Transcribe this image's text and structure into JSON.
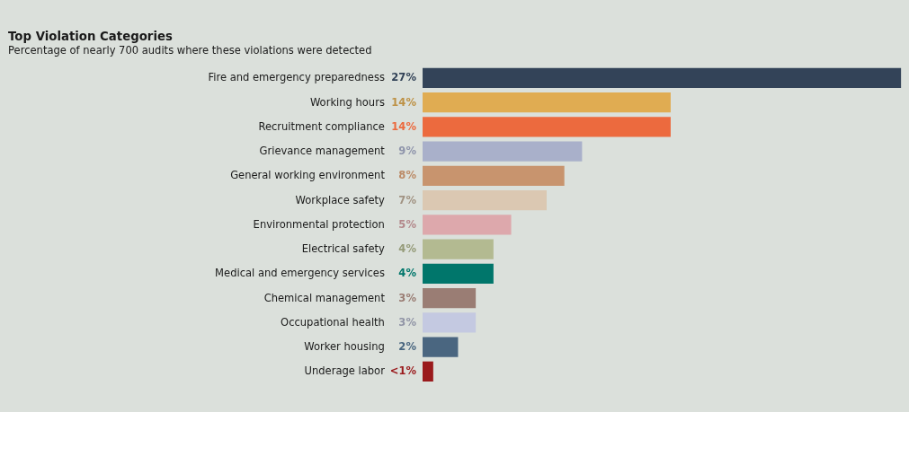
{
  "chart_data": {
    "type": "bar",
    "orientation": "horizontal",
    "title": "Top Violation Categories",
    "subtitle": "Percentage of nearly 700 audits where these violations were detected",
    "categories": [
      "Fire and emergency preparedness",
      "Working hours",
      "Recruitment compliance",
      "Grievance management",
      "General working environment",
      "Workplace safety",
      "Environmental protection",
      "Electrical safety",
      "Medical and emergency services",
      "Chemical management",
      "Occupational health",
      "Worker housing",
      "Underage labor"
    ],
    "values": [
      27,
      14,
      14,
      9,
      8,
      7,
      5,
      4,
      4,
      3,
      3,
      2,
      0.6
    ],
    "value_labels": [
      "27%",
      "14%",
      "14%",
      "9%",
      "8%",
      "7%",
      "5%",
      "4%",
      "4%",
      "3%",
      "3%",
      "2%",
      "<1%"
    ],
    "colors": [
      "#334358",
      "#e0ac52",
      "#ec6a3e",
      "#a9b0ca",
      "#c8946e",
      "#dbc8b2",
      "#dda8ac",
      "#b3ba91",
      "#00766b",
      "#9a7d74",
      "#c4c9e1",
      "#4a6680",
      "#9a1a1c"
    ],
    "data_labels": false
  }
}
